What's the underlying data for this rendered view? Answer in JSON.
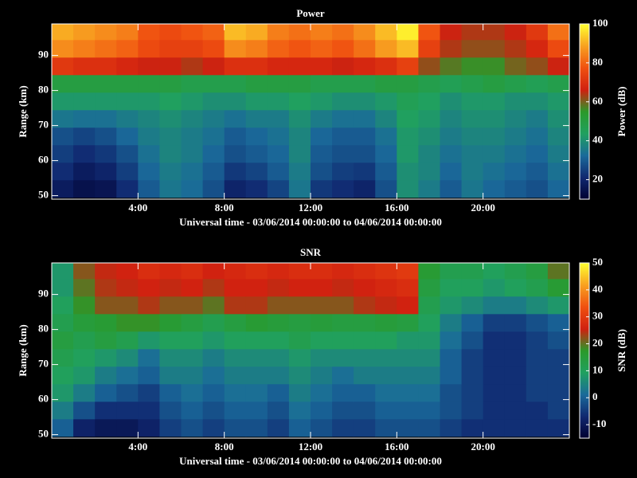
{
  "chart_data": [
    {
      "type": "heatmap",
      "title": "Power",
      "xlabel": "Universal time - 03/06/2014 00:00:00 to 04/06/2014 00:00:00",
      "ylabel": "Range (km)",
      "colorbar_label": "Power (dB)",
      "x": [
        0.5,
        1.5,
        2.5,
        3.5,
        4.5,
        5.5,
        6.5,
        7.5,
        8.5,
        9.5,
        10.5,
        11.5,
        12.5,
        13.5,
        14.5,
        15.5,
        16.5,
        17.5,
        18.5,
        19.5,
        20.5,
        21.5,
        22.5,
        23.5
      ],
      "y": [
        52,
        57,
        62,
        67,
        72,
        77,
        82,
        87,
        92,
        97
      ],
      "values": [
        [
          18,
          15,
          16,
          22,
          30,
          35,
          33,
          28,
          20,
          22,
          26,
          35,
          24,
          22,
          20,
          28,
          40,
          36,
          30,
          35,
          32,
          30,
          28,
          32
        ],
        [
          22,
          18,
          20,
          25,
          32,
          36,
          34,
          30,
          24,
          26,
          30,
          36,
          28,
          25,
          24,
          30,
          40,
          38,
          32,
          36,
          34,
          32,
          30,
          34
        ],
        [
          25,
          22,
          24,
          28,
          34,
          38,
          36,
          32,
          28,
          30,
          32,
          38,
          30,
          28,
          28,
          32,
          42,
          38,
          34,
          36,
          36,
          34,
          32,
          36
        ],
        [
          28,
          26,
          28,
          32,
          36,
          38,
          36,
          34,
          30,
          32,
          34,
          38,
          32,
          30,
          30,
          34,
          42,
          40,
          36,
          38,
          38,
          36,
          34,
          38
        ],
        [
          35,
          34,
          34,
          36,
          38,
          40,
          38,
          36,
          34,
          36,
          36,
          40,
          36,
          34,
          34,
          38,
          44,
          42,
          38,
          40,
          40,
          38,
          36,
          40
        ],
        [
          42,
          42,
          42,
          42,
          42,
          44,
          42,
          40,
          40,
          42,
          42,
          44,
          42,
          40,
          40,
          42,
          46,
          44,
          40,
          42,
          42,
          40,
          40,
          42
        ],
        [
          50,
          50,
          50,
          50,
          50,
          50,
          48,
          48,
          48,
          50,
          50,
          50,
          48,
          48,
          48,
          50,
          50,
          48,
          46,
          48,
          50,
          48,
          46,
          48
        ],
        [
          72,
          70,
          70,
          68,
          66,
          66,
          64,
          66,
          70,
          70,
          68,
          68,
          68,
          66,
          68,
          70,
          74,
          62,
          58,
          56,
          56,
          60,
          62,
          66
        ],
        [
          86,
          84,
          82,
          80,
          76,
          74,
          74,
          76,
          86,
          84,
          80,
          78,
          80,
          78,
          82,
          88,
          92,
          74,
          64,
          62,
          62,
          64,
          68,
          76
        ],
        [
          90,
          88,
          86,
          84,
          78,
          76,
          78,
          80,
          92,
          90,
          84,
          82,
          84,
          82,
          86,
          92,
          98,
          78,
          66,
          64,
          64,
          66,
          72,
          82
        ]
      ],
      "xlim": [
        0,
        24
      ],
      "ylim": [
        49,
        99
      ],
      "xticks": [
        {
          "value": 4,
          "label": "4:00"
        },
        {
          "value": 8,
          "label": "8:00"
        },
        {
          "value": 12,
          "label": "12:00"
        },
        {
          "value": 16,
          "label": "16:00"
        },
        {
          "value": 20,
          "label": "20:00"
        }
      ],
      "yticks": [
        50,
        60,
        70,
        80,
        90
      ],
      "clim": [
        10,
        100
      ],
      "cticks": [
        20,
        40,
        60,
        80,
        100
      ],
      "colorscale": [
        "#000030",
        "#102870",
        "#1a6a9a",
        "#20a060",
        "#2a9a2a",
        "#d02010",
        "#f05010",
        "#f8a020",
        "#ffff30"
      ]
    },
    {
      "type": "heatmap",
      "title": "SNR",
      "xlabel": "Universal time - 03/06/2014 00:00:00 to 04/06/2014 00:00:00",
      "ylabel": "Range (km)",
      "colorbar_label": "SNR (dB)",
      "x": [
        0.5,
        1.5,
        2.5,
        3.5,
        4.5,
        5.5,
        6.5,
        7.5,
        8.5,
        9.5,
        10.5,
        11.5,
        12.5,
        13.5,
        14.5,
        15.5,
        16.5,
        17.5,
        18.5,
        19.5,
        20.5,
        21.5,
        22.5,
        23.5
      ],
      "y": [
        52,
        57,
        62,
        67,
        72,
        77,
        82,
        87,
        92,
        97
      ],
      "values": [
        [
          0,
          -8,
          -10,
          -10,
          -8,
          -4,
          -2,
          -4,
          -2,
          -2,
          -4,
          0,
          -2,
          -4,
          -4,
          -2,
          -2,
          -2,
          -4,
          -6,
          -6,
          -6,
          -6,
          -6
        ],
        [
          4,
          -2,
          -6,
          -6,
          -6,
          -2,
          0,
          -2,
          0,
          0,
          -2,
          2,
          0,
          -2,
          -2,
          0,
          0,
          0,
          -2,
          -4,
          -6,
          -6,
          -6,
          -4
        ],
        [
          8,
          4,
          0,
          -2,
          -4,
          0,
          2,
          0,
          2,
          2,
          0,
          4,
          2,
          0,
          0,
          2,
          2,
          2,
          -2,
          -4,
          -6,
          -6,
          -4,
          -4
        ],
        [
          10,
          8,
          4,
          2,
          0,
          4,
          4,
          2,
          4,
          4,
          4,
          6,
          4,
          2,
          4,
          4,
          4,
          4,
          0,
          -4,
          -6,
          -6,
          -4,
          -4
        ],
        [
          12,
          10,
          8,
          6,
          2,
          6,
          6,
          4,
          6,
          6,
          6,
          8,
          6,
          6,
          6,
          6,
          6,
          6,
          0,
          -4,
          -6,
          -6,
          -4,
          -4
        ],
        [
          14,
          12,
          14,
          12,
          8,
          10,
          10,
          8,
          10,
          10,
          10,
          12,
          10,
          10,
          10,
          10,
          8,
          8,
          2,
          -2,
          -6,
          -6,
          -4,
          -2
        ],
        [
          12,
          15,
          16,
          18,
          18,
          16,
          14,
          12,
          14,
          16,
          15,
          14,
          15,
          14,
          14,
          15,
          14,
          10,
          4,
          0,
          -4,
          -4,
          -2,
          0
        ],
        [
          10,
          18,
          22,
          22,
          24,
          22,
          22,
          20,
          24,
          24,
          22,
          22,
          22,
          22,
          24,
          25,
          26,
          12,
          8,
          6,
          4,
          4,
          6,
          8
        ],
        [
          8,
          20,
          24,
          25,
          26,
          25,
          26,
          24,
          26,
          26,
          25,
          26,
          26,
          25,
          26,
          27,
          28,
          14,
          10,
          10,
          8,
          10,
          12,
          16
        ],
        [
          8,
          22,
          25,
          26,
          28,
          27,
          28,
          26,
          27,
          28,
          27,
          28,
          28,
          27,
          28,
          29,
          30,
          16,
          12,
          12,
          10,
          12,
          14,
          20
        ]
      ],
      "xlim": [
        0,
        24
      ],
      "ylim": [
        49,
        99
      ],
      "xticks": [
        {
          "value": 4,
          "label": "4:00"
        },
        {
          "value": 8,
          "label": "8:00"
        },
        {
          "value": 12,
          "label": "12:00"
        },
        {
          "value": 16,
          "label": "16:00"
        },
        {
          "value": 20,
          "label": "20:00"
        }
      ],
      "yticks": [
        50,
        60,
        70,
        80,
        90
      ],
      "clim": [
        -15,
        50
      ],
      "cticks": [
        -10,
        0,
        10,
        20,
        30,
        40,
        50
      ],
      "colorscale": [
        "#000030",
        "#102870",
        "#1a6a9a",
        "#20a060",
        "#2a9a2a",
        "#d02010",
        "#f05010",
        "#f8a020",
        "#ffff30"
      ]
    }
  ]
}
